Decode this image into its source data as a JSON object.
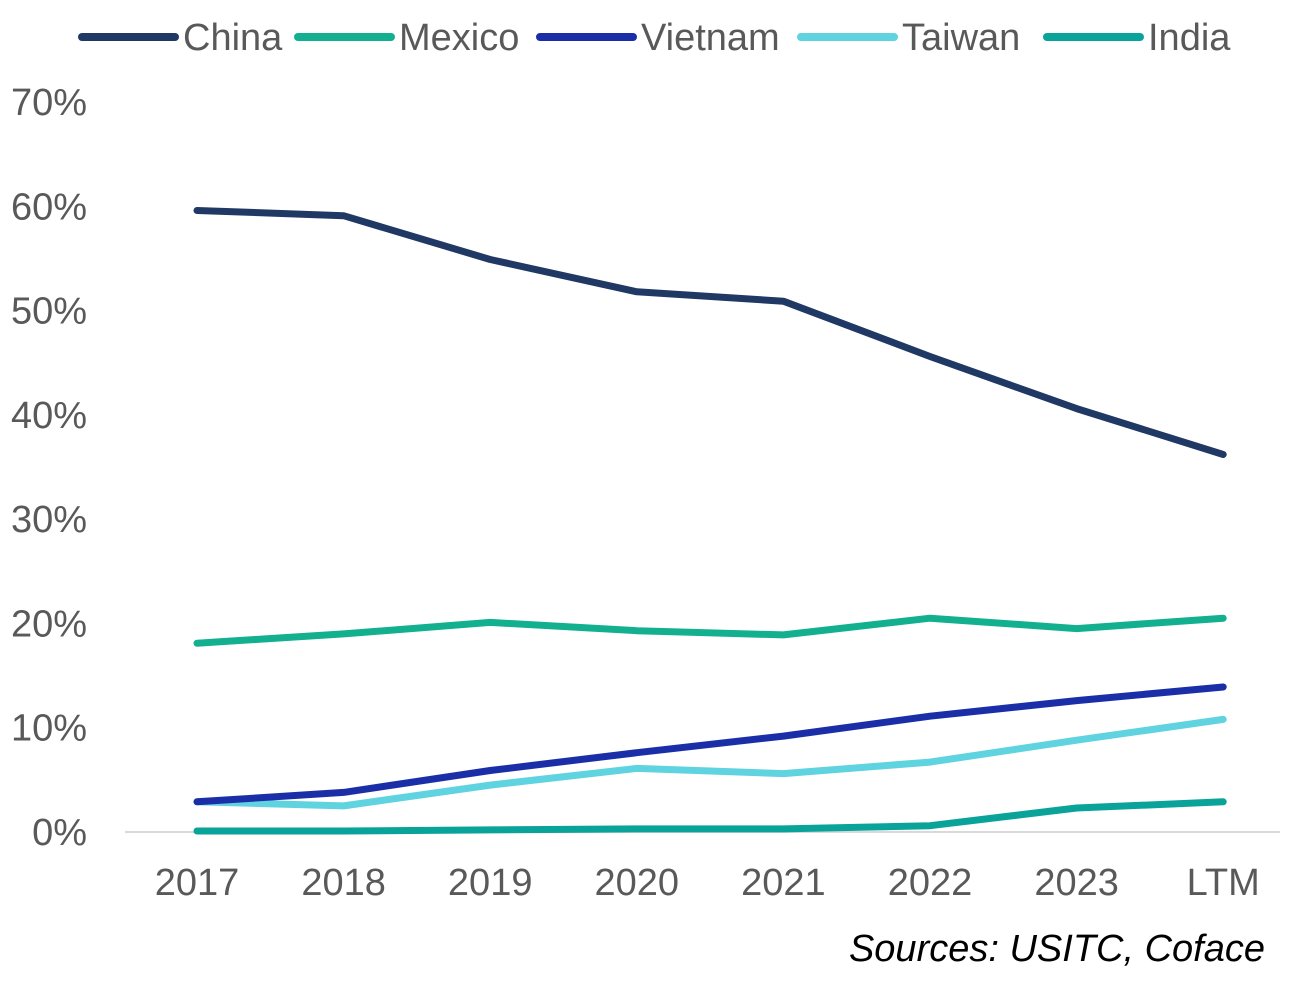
{
  "source_note": "Sources: USITC, Coface",
  "chart_data": {
    "type": "line",
    "title": "",
    "xlabel": "",
    "ylabel": "",
    "categories": [
      "2017",
      "2018",
      "2019",
      "2020",
      "2021",
      "2022",
      "2023",
      "LTM"
    ],
    "ylim": [
      0,
      70
    ],
    "yticks": [
      0,
      10,
      20,
      30,
      40,
      50,
      60,
      70
    ],
    "ytick_labels": [
      "0%",
      "10%",
      "20%",
      "30%",
      "40%",
      "50%",
      "60%",
      "70%"
    ],
    "grid": false,
    "legend_position": "top",
    "series": [
      {
        "name": "China",
        "color": "#1f3864",
        "values": [
          59.6,
          59.1,
          54.9,
          51.8,
          50.9,
          45.6,
          40.6,
          36.2
        ]
      },
      {
        "name": "Mexico",
        "color": "#12b08f",
        "values": [
          18.1,
          19.0,
          20.1,
          19.3,
          18.9,
          20.5,
          19.5,
          20.5
        ]
      },
      {
        "name": "Vietnam",
        "color": "#1a2ea8",
        "values": [
          2.9,
          3.8,
          5.9,
          7.6,
          9.2,
          11.1,
          12.6,
          13.9
        ]
      },
      {
        "name": "Taiwan",
        "color": "#5fd3e0",
        "values": [
          2.9,
          2.5,
          4.5,
          6.1,
          5.6,
          6.7,
          8.8,
          10.8
        ]
      },
      {
        "name": "India",
        "color": "#0aa39a",
        "values": [
          0.1,
          0.1,
          0.2,
          0.3,
          0.3,
          0.6,
          2.3,
          2.9
        ]
      }
    ]
  }
}
